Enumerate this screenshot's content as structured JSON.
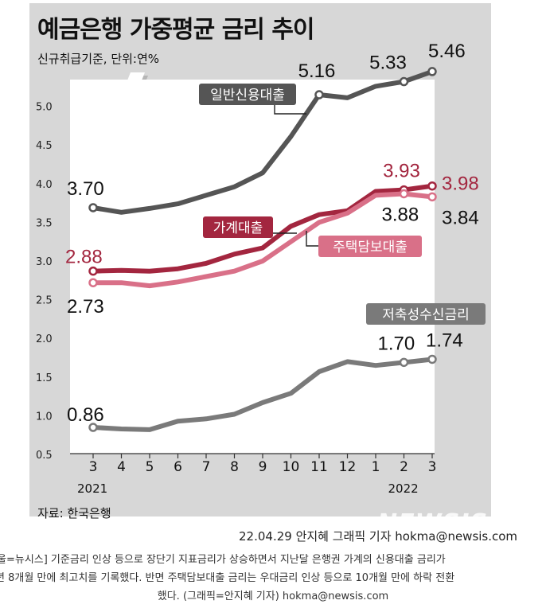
{
  "header": {
    "title": "예금은행 가중평균 금리 추이",
    "subtitle": "신규취급기준, 단위:연%"
  },
  "footer": {
    "source": "자료: 한국은행",
    "credit": "22.04.29 안지혜 그래픽 기자 hokma@newsis.com",
    "watermark": "NEWSIS",
    "caption_line1": "울=뉴시스] 기준금리 인상 등으로 장단기 지표금리가 상승하면서 지난달 은행권 가계의 신용대출 금리가",
    "caption_line2": "년 8개월 만에 최고치를 기록했다. 반면 주택담보대출 금리는 우대금리 인상 등으로 10개월 만에 하락 전환",
    "caption_line3": "했다. (그래픽=안지혜 기자) hokma@newsis.com"
  },
  "chart_data": {
    "type": "line",
    "title": "예금은행 가중평균 금리 추이",
    "subtitle": "신규취급기준, 단위:연%",
    "categories": [
      "3",
      "4",
      "5",
      "6",
      "7",
      "8",
      "9",
      "10",
      "11",
      "12",
      "1",
      "2",
      "3"
    ],
    "year_labels": [
      {
        "label": "2021",
        "category_index": 0
      },
      {
        "label": "2022",
        "category_index": 11
      }
    ],
    "yticks": [
      "0.5",
      "1.0",
      "1.5",
      "2.0",
      "2.5",
      "3.0",
      "3.5",
      "4.0",
      "4.5",
      "5.0"
    ],
    "ylim": [
      0.5,
      5.7
    ],
    "grid": false,
    "series": [
      {
        "name": "일반신용대출",
        "color": "#555555",
        "values": [
          3.7,
          3.64,
          3.69,
          3.75,
          3.86,
          3.97,
          4.15,
          4.62,
          5.16,
          5.12,
          5.27,
          5.33,
          5.46
        ],
        "annotations": [
          {
            "index": 0,
            "text": "3.70"
          },
          {
            "index": 8,
            "text": "5.16"
          },
          {
            "index": 11,
            "text": "5.33"
          },
          {
            "index": 12,
            "text": "5.46"
          }
        ]
      },
      {
        "name": "가계대출",
        "color": "#a3263f",
        "values": [
          2.88,
          2.89,
          2.88,
          2.91,
          2.98,
          3.1,
          3.18,
          3.46,
          3.61,
          3.66,
          3.91,
          3.93,
          3.98
        ],
        "annotations": [
          {
            "index": 0,
            "text": "2.88"
          },
          {
            "index": 11,
            "text": "3.93"
          },
          {
            "index": 12,
            "text": "3.98"
          }
        ]
      },
      {
        "name": "주택담보대출",
        "color": "#d97088",
        "values": [
          2.73,
          2.73,
          2.69,
          2.74,
          2.81,
          2.88,
          3.01,
          3.26,
          3.51,
          3.63,
          3.86,
          3.88,
          3.84
        ],
        "annotations": [
          {
            "index": 0,
            "text": "2.73"
          },
          {
            "index": 11,
            "text": "3.88"
          },
          {
            "index": 12,
            "text": "3.84"
          }
        ]
      },
      {
        "name": "저축성수신금리",
        "color": "#7a7a7a",
        "values": [
          0.86,
          0.84,
          0.83,
          0.94,
          0.97,
          1.03,
          1.18,
          1.3,
          1.58,
          1.71,
          1.66,
          1.7,
          1.74
        ],
        "annotations": [
          {
            "index": 0,
            "text": "0.86"
          },
          {
            "index": 11,
            "text": "1.70"
          },
          {
            "index": 12,
            "text": "1.74"
          }
        ]
      }
    ]
  }
}
